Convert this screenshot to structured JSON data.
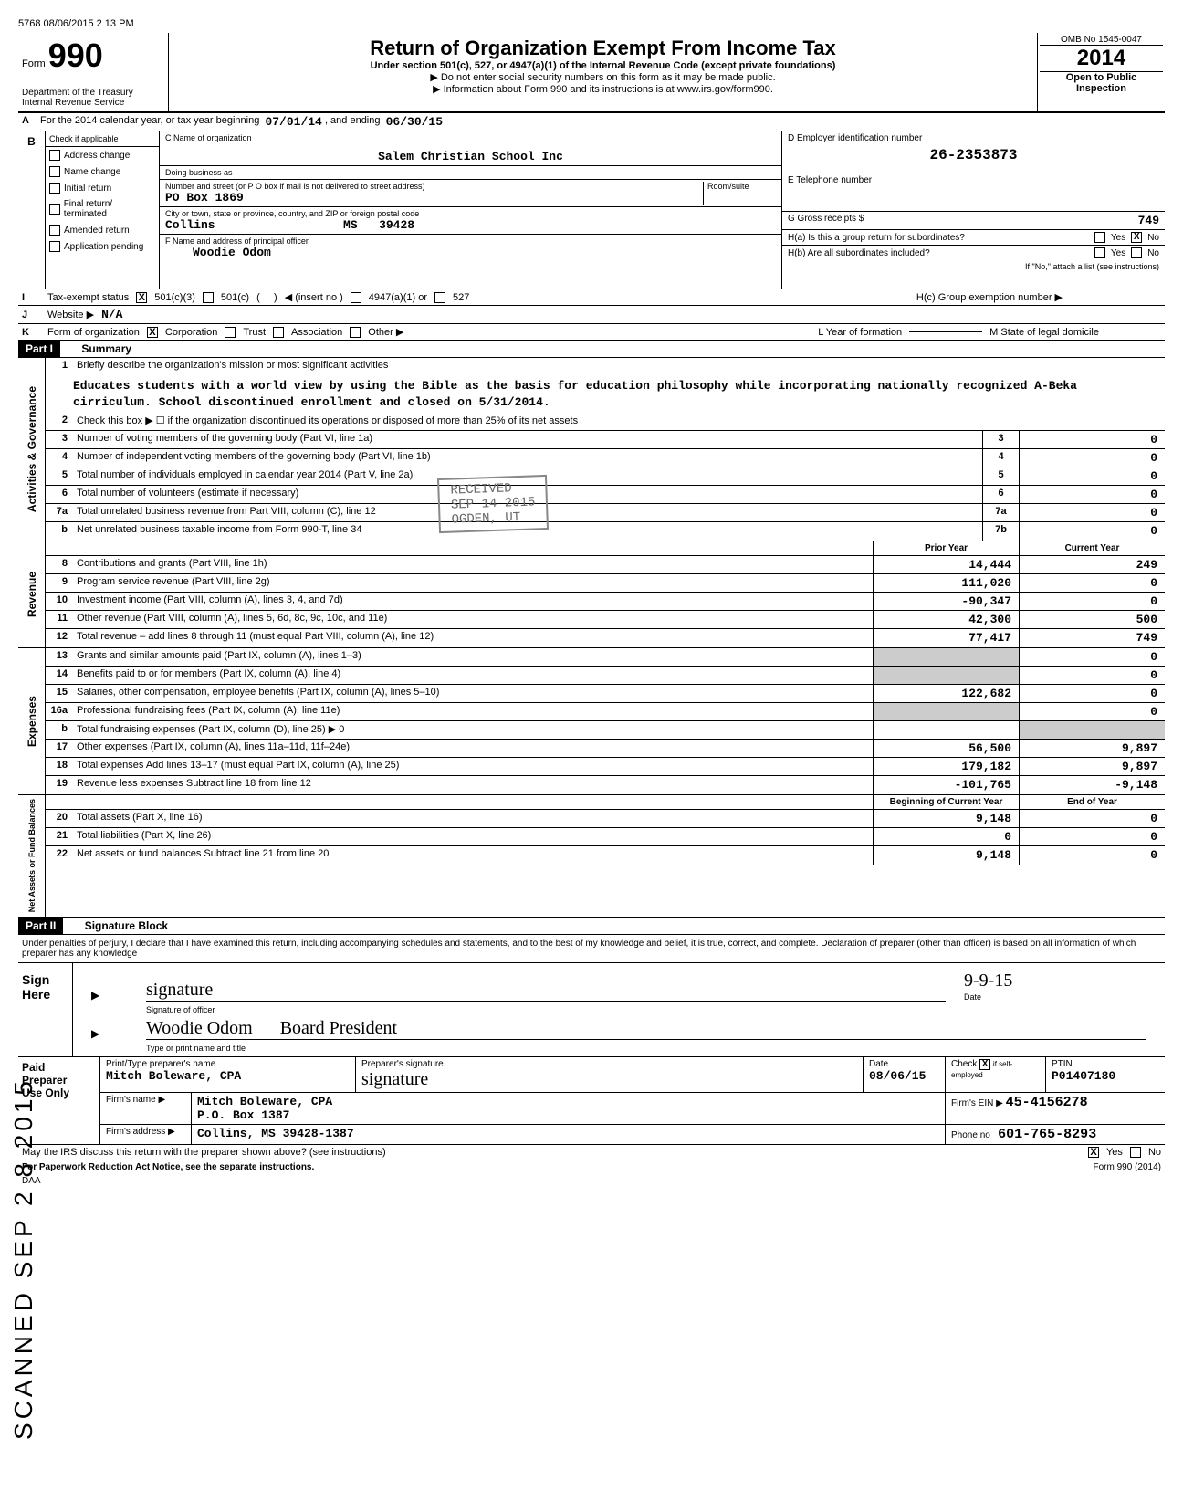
{
  "top_stamp": "5768 08/06/2015 2 13 PM",
  "form": {
    "label": "Form",
    "number": "990",
    "dept1": "Department of the Treasury",
    "dept2": "Internal Revenue Service"
  },
  "title": {
    "main": "Return of Organization Exempt From Income Tax",
    "sub": "Under section 501(c), 527, or 4947(a)(1) of the Internal Revenue Code (except private foundations)",
    "line2": "▶ Do not enter social security numbers on this form as it may be made public.",
    "line3": "▶ Information about Form 990 and its instructions is at www.irs.gov/form990."
  },
  "omb": {
    "number": "OMB No 1545-0047",
    "year": "2014",
    "open": "Open to Public",
    "inspection": "Inspection"
  },
  "row_a": {
    "prefix": "A",
    "text": "For the 2014 calendar year, or tax year beginning",
    "begin": "07/01/14",
    "mid": ", and ending",
    "end": "06/30/15"
  },
  "section_b": {
    "label": "B",
    "check_label": "Check if applicable",
    "checks": [
      "Address change",
      "Name change",
      "Initial return",
      "Final return/ terminated",
      "Amended return",
      "Application pending"
    ],
    "c_label": "C  Name of organization",
    "org_name": "Salem Christian School Inc",
    "dba_label": "Doing business as",
    "addr_label": "Number and street (or P O  box if mail is not delivered to street address)",
    "addr": "PO Box 1869",
    "room_label": "Room/suite",
    "city_label": "City or town, state or province, country, and ZIP or foreign postal code",
    "city": "Collins",
    "state": "MS",
    "zip": "39428",
    "f_label": "F  Name and address of principal officer",
    "officer": "Woodie Odom",
    "d_label": "D Employer identification number",
    "ein": "26-2353873",
    "e_label": "E Telephone number",
    "g_label": "G Gross receipts $",
    "g_val": "749",
    "h_a": "H(a) Is this a group return for subordinates?",
    "h_b": "H(b) Are all subordinates included?",
    "h_note": "If \"No,\" attach a list (see instructions)",
    "h_c": "H(c) Group exemption number ▶",
    "yes": "Yes",
    "no": "No"
  },
  "row_i": {
    "letter": "I",
    "label": "Tax-exempt status",
    "opt1": "501(c)(3)",
    "opt2": "501(c)",
    "insert": "◀ (insert no )",
    "opt3": "4947(a)(1) or",
    "opt4": "527"
  },
  "row_j": {
    "letter": "J",
    "label": "Website ▶",
    "val": "N/A"
  },
  "row_k": {
    "letter": "K",
    "label": "Form of organization",
    "opts": [
      "Corporation",
      "Trust",
      "Association",
      "Other ▶"
    ],
    "l_label": "L  Year of formation",
    "m_label": "M  State of legal domicile"
  },
  "part1": {
    "header": "Part I",
    "title": "Summary"
  },
  "governance": {
    "label": "Activities & Governance",
    "line1": "Briefly describe the organization's mission or most significant activities",
    "mission": "Educates students with a world view by using the Bible as the basis for education philosophy while incorporating nationally recognized A-Beka cirriculum. School discontinued enrollment and closed on 5/31/2014.",
    "line2": "Check this box ▶ ☐ if the organization discontinued its operations or disposed of more than 25% of its net assets",
    "lines": [
      {
        "n": "3",
        "d": "Number of voting members of the governing body (Part VI, line 1a)",
        "b": "3",
        "v": "0"
      },
      {
        "n": "4",
        "d": "Number of independent voting members of the governing body (Part VI, line 1b)",
        "b": "4",
        "v": "0"
      },
      {
        "n": "5",
        "d": "Total number of individuals employed in calendar year 2014 (Part V, line 2a)",
        "b": "5",
        "v": "0"
      },
      {
        "n": "6",
        "d": "Total number of volunteers (estimate if necessary)",
        "b": "6",
        "v": "0"
      },
      {
        "n": "7a",
        "d": "Total unrelated business revenue from Part VIII, column (C), line 12",
        "b": "7a",
        "v": "0"
      },
      {
        "n": "b",
        "d": "Net unrelated business taxable income from Form 990-T, line 34",
        "b": "7b",
        "v": "0"
      }
    ]
  },
  "col_headers": {
    "prior": "Prior Year",
    "current": "Current Year"
  },
  "revenue": {
    "label": "Revenue",
    "lines": [
      {
        "n": "8",
        "d": "Contributions and grants (Part VIII, line 1h)",
        "p": "14,444",
        "c": "249"
      },
      {
        "n": "9",
        "d": "Program service revenue (Part VIII, line 2g)",
        "p": "111,020",
        "c": "0"
      },
      {
        "n": "10",
        "d": "Investment income (Part VIII, column (A), lines 3, 4, and 7d)",
        "p": "-90,347",
        "c": "0"
      },
      {
        "n": "11",
        "d": "Other revenue (Part VIII, column (A), lines 5, 6d, 8c, 9c, 10c, and 11e)",
        "p": "42,300",
        "c": "500"
      },
      {
        "n": "12",
        "d": "Total revenue – add lines 8 through 11 (must equal Part VIII, column (A), line 12)",
        "p": "77,417",
        "c": "749"
      }
    ]
  },
  "expenses": {
    "label": "Expenses",
    "lines": [
      {
        "n": "13",
        "d": "Grants and similar amounts paid (Part IX, column (A), lines 1–3)",
        "p": "",
        "c": "0"
      },
      {
        "n": "14",
        "d": "Benefits paid to or for members (Part IX, column (A), line 4)",
        "p": "",
        "c": "0"
      },
      {
        "n": "15",
        "d": "Salaries, other compensation, employee benefits (Part IX, column (A), lines 5–10)",
        "p": "122,682",
        "c": "0"
      },
      {
        "n": "16a",
        "d": "Professional fundraising fees (Part IX, column (A), line 11e)",
        "p": "",
        "c": "0"
      },
      {
        "n": "b",
        "d": "Total fundraising expenses (Part IX, column (D), line 25) ▶                                       0",
        "p": "",
        "c": ""
      },
      {
        "n": "17",
        "d": "Other expenses (Part IX, column (A), lines 11a–11d, 11f–24e)",
        "p": "56,500",
        "c": "9,897"
      },
      {
        "n": "18",
        "d": "Total expenses  Add lines 13–17 (must equal Part IX, column (A), line 25)",
        "p": "179,182",
        "c": "9,897"
      },
      {
        "n": "19",
        "d": "Revenue less expenses  Subtract line 18 from line 12",
        "p": "-101,765",
        "c": "-9,148"
      }
    ]
  },
  "netassets": {
    "label": "Net Assets or Fund Balances",
    "col_headers": {
      "begin": "Beginning of Current Year",
      "end": "End of Year"
    },
    "lines": [
      {
        "n": "20",
        "d": "Total assets (Part X, line 16)",
        "p": "9,148",
        "c": "0"
      },
      {
        "n": "21",
        "d": "Total liabilities (Part X, line 26)",
        "p": "0",
        "c": "0"
      },
      {
        "n": "22",
        "d": "Net assets or fund balances  Subtract line 21 from line 20",
        "p": "9,148",
        "c": "0"
      }
    ]
  },
  "part2": {
    "header": "Part II",
    "title": "Signature Block",
    "declaration": "Under penalties of perjury, I declare that I have examined this return, including accompanying schedules and statements, and to the best of my knowledge and belief, it is true, correct, and complete. Declaration of preparer (other than officer) is based on all information of which preparer has any knowledge"
  },
  "sign": {
    "label1": "Sign",
    "label2": "Here",
    "sig_label": "Signature of officer",
    "date_label": "Date",
    "date": "9-9-15",
    "name": "Woodie Odom",
    "title": "Board President",
    "type_label": "Type or print name and title"
  },
  "preparer": {
    "label1": "Paid",
    "label2": "Preparer",
    "label3": "Use Only",
    "print_label": "Print/Type preparer's name",
    "sig_label": "Preparer's signature",
    "name": "Mitch Boleware, CPA",
    "date_label": "Date",
    "date": "08/06/15",
    "check_label": "Check",
    "self_label": "if self-employed",
    "ptin_label": "PTIN",
    "ptin": "P01407180",
    "firm_label": "Firm's name  ▶",
    "firm": "Mitch Boleware, CPA",
    "ein_label": "Firm's EIN ▶",
    "ein": "45-4156278",
    "addr_label": "Firm's address  ▶",
    "addr1": "P.O. Box 1387",
    "addr2": "Collins, MS  39428-1387",
    "phone_label": "Phone no",
    "phone": "601-765-8293"
  },
  "footer": {
    "discuss": "May the IRS discuss this return with the preparer shown above? (see instructions)",
    "yes": "Yes",
    "no": "No",
    "paperwork": "For Paperwork Reduction Act Notice, see the separate instructions.",
    "daa": "DAA",
    "form": "Form 990 (2014)"
  },
  "received_stamp": {
    "line1": "RECEIVED",
    "line2": "SEP 14 2015",
    "line3": "OGDEN, UT"
  },
  "scanned": "SCANNED SEP 2 8 2015"
}
